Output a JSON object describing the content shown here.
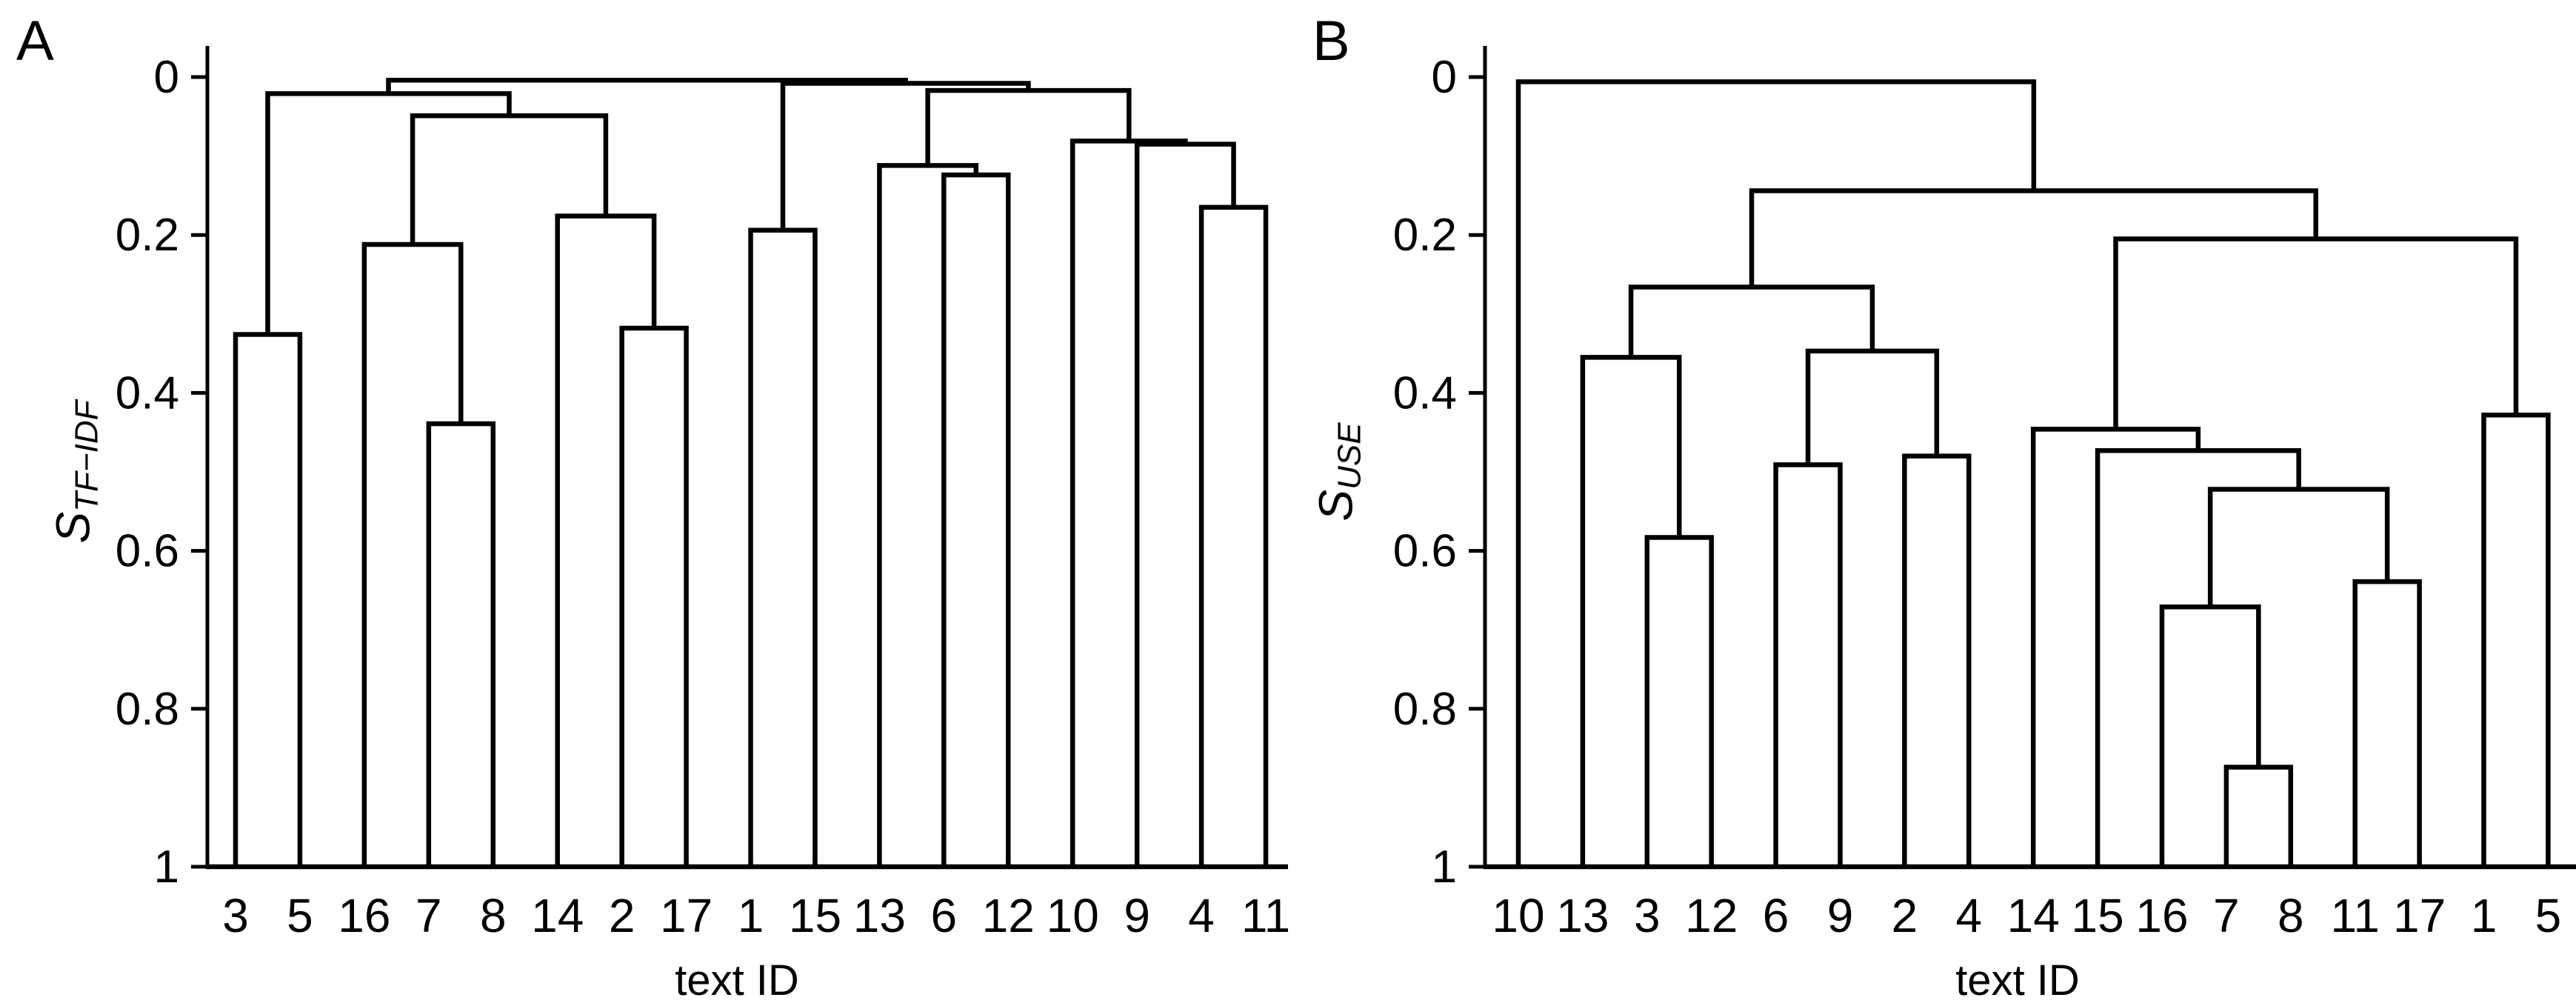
{
  "figure": {
    "panel_a": {
      "title": "A",
      "ylabel_main": "S",
      "ylabel_sub": "TF−IDF",
      "xlabel": "text ID"
    },
    "panel_b": {
      "title": "B",
      "ylabel_main": "S",
      "ylabel_sub": "USE",
      "xlabel": "text ID"
    }
  },
  "chart_data": [
    {
      "type": "dendrogram",
      "panel": "A",
      "title": "A",
      "ylabel": "S_TF−IDF",
      "xlabel": "text ID",
      "ylim": [
        1,
        0
      ],
      "yticks": [
        0,
        0.2,
        0.4,
        0.6,
        0.8,
        1
      ],
      "ytick_labels": [
        "0",
        "0.2",
        "0.4",
        "0.6",
        "0.8",
        "1"
      ],
      "leaf_order": [
        "3",
        "5",
        "16",
        "7",
        "8",
        "14",
        "2",
        "17",
        "1",
        "15",
        "13",
        "6",
        "12",
        "10",
        "9",
        "4",
        "11"
      ],
      "grid": false,
      "line_color": "#000000",
      "tree": {
        "h": 0.004,
        "c": [
          {
            "h": 0.021,
            "c": [
              {
                "h": 0.326,
                "c": [
                  {
                    "l": "3"
                  },
                  {
                    "l": "5"
                  }
                ]
              },
              {
                "h": 0.049,
                "c": [
                  {
                    "h": 0.212,
                    "c": [
                      {
                        "l": "16"
                      },
                      {
                        "h": 0.439,
                        "c": [
                          {
                            "l": "7"
                          },
                          {
                            "l": "8"
                          }
                        ]
                      }
                    ]
                  },
                  {
                    "h": 0.176,
                    "c": [
                      {
                        "l": "14"
                      },
                      {
                        "h": 0.318,
                        "c": [
                          {
                            "l": "2"
                          },
                          {
                            "l": "17"
                          }
                        ]
                      }
                    ]
                  }
                ]
              }
            ]
          },
          {
            "h": 0.008,
            "c": [
              {
                "h": 0.194,
                "c": [
                  {
                    "l": "1"
                  },
                  {
                    "l": "15"
                  }
                ]
              },
              {
                "h": 0.017,
                "c": [
                  {
                    "h": 0.112,
                    "c": [
                      {
                        "l": "13"
                      },
                      {
                        "h": 0.124,
                        "c": [
                          {
                            "l": "6"
                          },
                          {
                            "l": "12"
                          }
                        ]
                      }
                    ]
                  },
                  {
                    "h": 0.081,
                    "c": [
                      {
                        "l": "10"
                      },
                      {
                        "h": 0.085,
                        "c": [
                          {
                            "l": "9"
                          },
                          {
                            "h": 0.165,
                            "c": [
                              {
                                "l": "4"
                              },
                              {
                                "l": "11"
                              }
                            ]
                          }
                        ]
                      }
                    ]
                  }
                ]
              }
            ]
          }
        ]
      }
    },
    {
      "type": "dendrogram",
      "panel": "B",
      "title": "B",
      "ylabel": "S_USE",
      "xlabel": "text ID",
      "ylim": [
        1,
        0
      ],
      "yticks": [
        0,
        0.2,
        0.4,
        0.6,
        0.8,
        1
      ],
      "ytick_labels": [
        "0",
        "0.2",
        "0.4",
        "0.6",
        "0.8",
        "1"
      ],
      "leaf_order": [
        "10",
        "13",
        "3",
        "12",
        "6",
        "9",
        "2",
        "4",
        "14",
        "15",
        "16",
        "7",
        "8",
        "11",
        "17",
        "1",
        "5"
      ],
      "grid": false,
      "line_color": "#000000",
      "tree": {
        "h": 0.006,
        "c": [
          {
            "l": "10"
          },
          {
            "h": 0.144,
            "c": [
              {
                "h": 0.266,
                "c": [
                  {
                    "h": 0.355,
                    "c": [
                      {
                        "l": "13"
                      },
                      {
                        "h": 0.583,
                        "c": [
                          {
                            "l": "3"
                          },
                          {
                            "l": "12"
                          }
                        ]
                      }
                    ]
                  },
                  {
                    "h": 0.347,
                    "c": [
                      {
                        "h": 0.491,
                        "c": [
                          {
                            "l": "6"
                          },
                          {
                            "l": "9"
                          }
                        ]
                      },
                      {
                        "h": 0.48,
                        "c": [
                          {
                            "l": "2"
                          },
                          {
                            "l": "4"
                          }
                        ]
                      }
                    ]
                  }
                ]
              },
              {
                "h": 0.205,
                "c": [
                  {
                    "h": 0.446,
                    "c": [
                      {
                        "l": "14"
                      },
                      {
                        "h": 0.473,
                        "c": [
                          {
                            "l": "15"
                          },
                          {
                            "h": 0.522,
                            "c": [
                              {
                                "h": 0.671,
                                "c": [
                                  {
                                    "l": "16"
                                  },
                                  {
                                    "h": 0.874,
                                    "c": [
                                      {
                                        "l": "7"
                                      },
                                      {
                                        "l": "8"
                                      }
                                    ]
                                  }
                                ]
                              },
                              {
                                "h": 0.639,
                                "c": [
                                  {
                                    "l": "11"
                                  },
                                  {
                                    "l": "17"
                                  }
                                ]
                              }
                            ]
                          }
                        ]
                      }
                    ]
                  },
                  {
                    "h": 0.428,
                    "c": [
                      {
                        "l": "1"
                      },
                      {
                        "l": "5"
                      }
                    ]
                  }
                ]
              }
            ]
          }
        ]
      }
    }
  ]
}
